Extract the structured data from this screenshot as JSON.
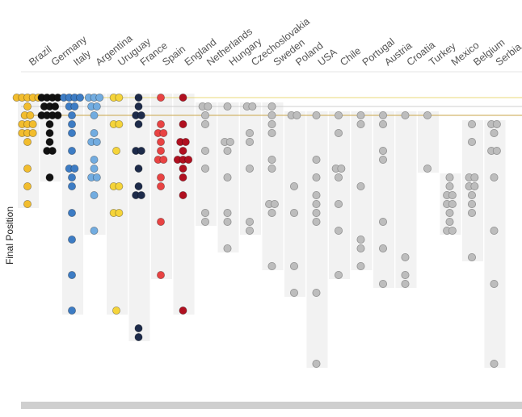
{
  "chart_data": {
    "type": "scatter",
    "title": "",
    "xlabel": "",
    "ylabel": "Final Position",
    "categories": [
      "Brazil",
      "Germany",
      "Italy",
      "Argentina",
      "Uruguay",
      "France",
      "Spain",
      "England",
      "Netherlands",
      "Hungary",
      "Czechoslovakia",
      "Sweden",
      "Poland",
      "USA",
      "Chile",
      "Portugal",
      "Austria",
      "Croatia",
      "Turkey",
      "Mexico",
      "Belgium",
      "Serbia"
    ],
    "y_axis": {
      "reversed": true,
      "min": 1,
      "max": 32,
      "tick_labels_shown": false
    },
    "reference_lines": [
      {
        "y": 1,
        "color": "#e8d87a"
      },
      {
        "y": 2,
        "color": "#cfcfcf"
      },
      {
        "y": 3,
        "color": "#c9a64a"
      }
    ],
    "colors": {
      "Brazil": "#f2bd2e",
      "Germany": "#111111",
      "Italy": "#3d7cc4",
      "Argentina": "#72ace0",
      "Uruguay": "#f5d43a",
      "France": "#1d2b4a",
      "Spain": "#e84343",
      "England": "#b01020",
      "other": "#bdbdbd"
    },
    "series": [
      {
        "name": "Brazil",
        "values": [
          1,
          1,
          1,
          1,
          1,
          2,
          3,
          3,
          4,
          4,
          4,
          5,
          5,
          5,
          6,
          9,
          11,
          13
        ]
      },
      {
        "name": "Germany",
        "values": [
          1,
          1,
          1,
          1,
          2,
          2,
          2,
          3,
          3,
          3,
          3,
          4,
          5,
          6,
          7,
          7,
          10
        ]
      },
      {
        "name": "Italy",
        "values": [
          1,
          1,
          1,
          1,
          2,
          2,
          3,
          4,
          5,
          7,
          9,
          9,
          10,
          11,
          14,
          17,
          21,
          25
        ]
      },
      {
        "name": "Argentina",
        "values": [
          1,
          1,
          1,
          2,
          2,
          3,
          5,
          6,
          6,
          8,
          9,
          10,
          10,
          12,
          16
        ]
      },
      {
        "name": "Uruguay",
        "values": [
          1,
          1,
          4,
          4,
          7,
          11,
          11,
          14,
          14,
          25
        ]
      },
      {
        "name": "France",
        "values": [
          1,
          2,
          3,
          3,
          4,
          7,
          7,
          9,
          11,
          12,
          12,
          27,
          28
        ]
      },
      {
        "name": "Spain",
        "values": [
          1,
          4,
          5,
          5,
          6,
          7,
          8,
          8,
          10,
          11,
          15,
          21
        ]
      },
      {
        "name": "England",
        "values": [
          1,
          4,
          6,
          6,
          7,
          8,
          8,
          8,
          9,
          10,
          12,
          25
        ]
      },
      {
        "name": "Netherlands",
        "values": [
          2,
          2,
          3,
          4,
          7,
          9,
          14,
          15
        ]
      },
      {
        "name": "Hungary",
        "values": [
          2,
          6,
          6,
          7,
          10,
          14,
          15,
          18
        ]
      },
      {
        "name": "Czechoslovakia",
        "values": [
          2,
          2,
          5,
          6,
          9,
          15,
          16
        ]
      },
      {
        "name": "Sweden",
        "values": [
          2,
          3,
          4,
          5,
          8,
          9,
          13,
          13,
          14,
          20
        ]
      },
      {
        "name": "Poland",
        "values": [
          3,
          3,
          11,
          14,
          20,
          23
        ]
      },
      {
        "name": "USA",
        "values": [
          3,
          8,
          10,
          12,
          13,
          14,
          15,
          23,
          31
        ]
      },
      {
        "name": "Chile",
        "values": [
          3,
          5,
          9,
          9,
          10,
          13,
          16,
          21
        ]
      },
      {
        "name": "Portugal",
        "values": [
          3,
          4,
          11,
          17,
          18,
          20
        ]
      },
      {
        "name": "Austria",
        "values": [
          3,
          4,
          7,
          8,
          15,
          18,
          22
        ]
      },
      {
        "name": "Croatia",
        "values": [
          3,
          19,
          21,
          22
        ]
      },
      {
        "name": "Turkey",
        "values": [
          3,
          9
        ]
      },
      {
        "name": "Mexico",
        "values": [
          10,
          11,
          12,
          12,
          13,
          13,
          14,
          15,
          16,
          16
        ]
      },
      {
        "name": "Belgium",
        "values": [
          4,
          6,
          10,
          10,
          11,
          11,
          12,
          13,
          14,
          19
        ]
      },
      {
        "name": "Serbia",
        "values": [
          4,
          4,
          5,
          7,
          7,
          10,
          16,
          22,
          31
        ]
      }
    ]
  }
}
